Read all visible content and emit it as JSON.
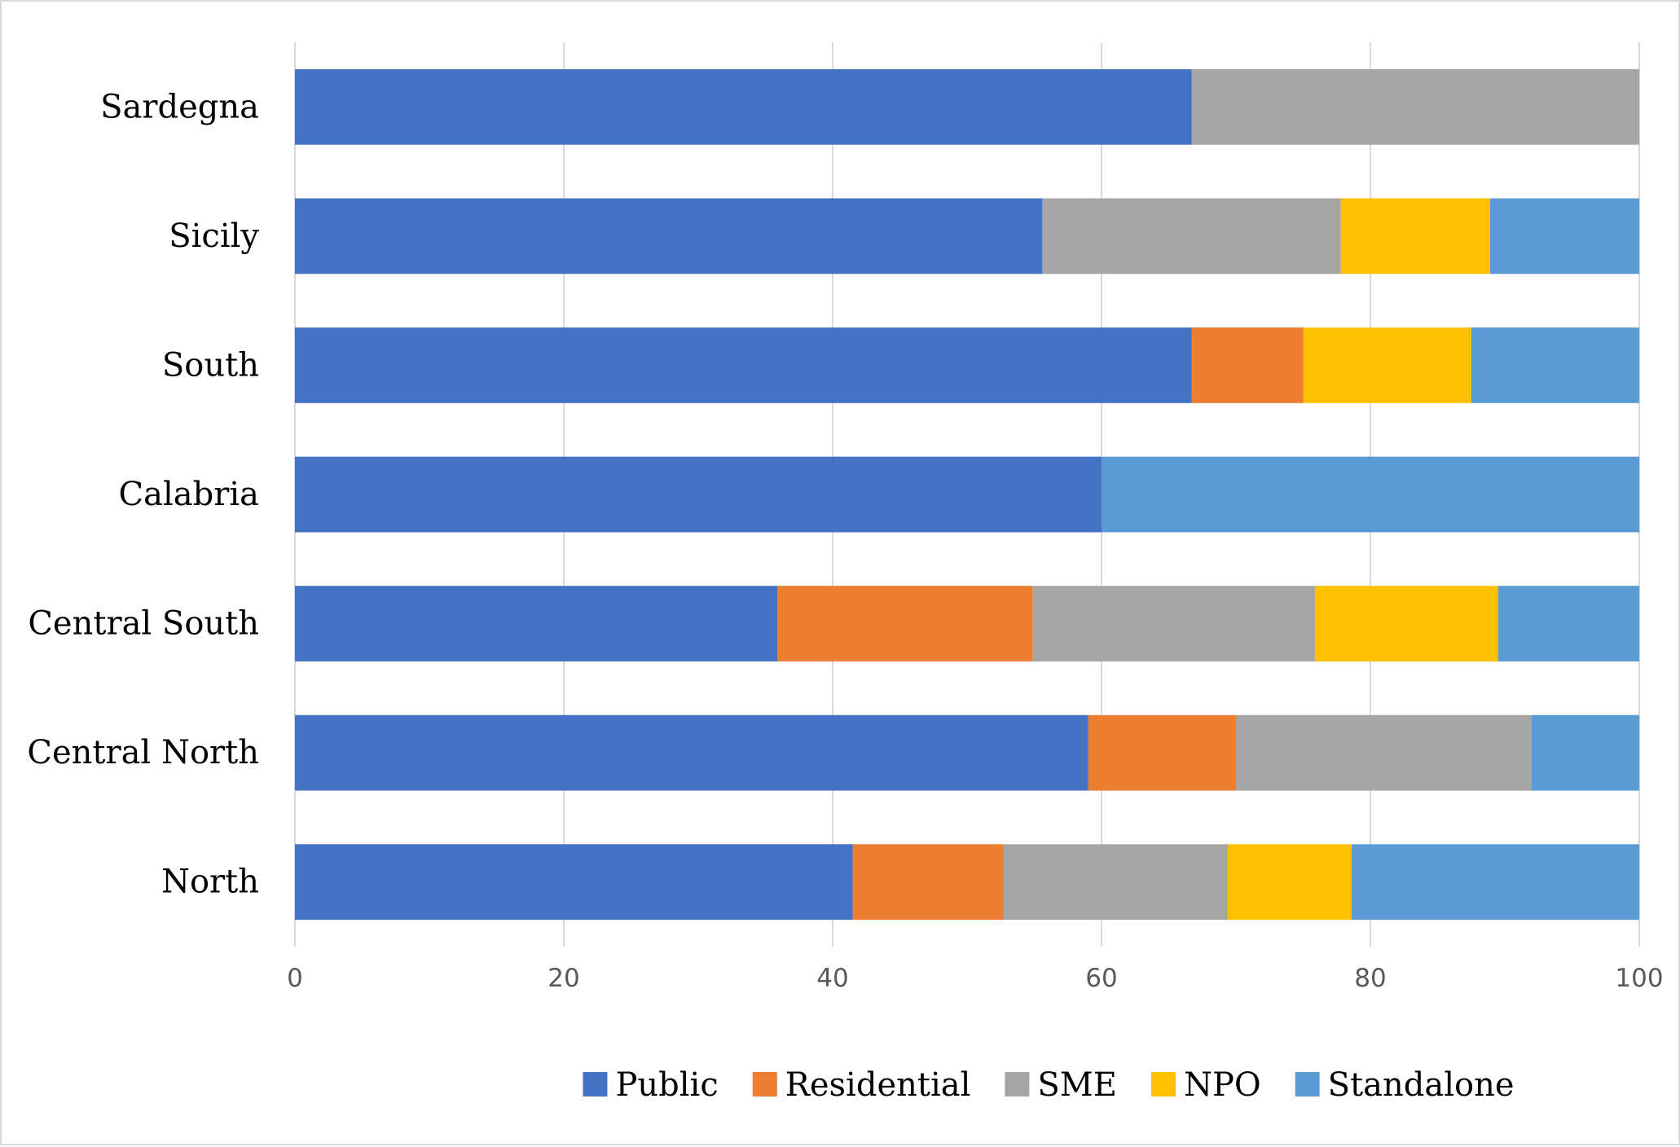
{
  "chart_data": {
    "type": "bar",
    "orientation": "horizontal",
    "stacked": true,
    "title": "",
    "xlabel": "",
    "ylabel": "",
    "xlim": [
      0,
      100
    ],
    "x_ticks": [
      0,
      20,
      40,
      60,
      80,
      100
    ],
    "grid": true,
    "legend_position": "bottom",
    "categories": [
      "Sardegna",
      "Sicily",
      "South",
      "Calabria",
      "Central South",
      "Central North",
      "North"
    ],
    "series": [
      {
        "name": "Public",
        "color": "#4472C4",
        "values": [
          66.7,
          55.6,
          66.7,
          60.0,
          35.9,
          59.0,
          41.5
        ]
      },
      {
        "name": "Residential",
        "color": "#ED7D31",
        "values": [
          0.0,
          0.0,
          8.3,
          0.0,
          19.0,
          11.0,
          11.2
        ]
      },
      {
        "name": "SME",
        "color": "#A5A5A5",
        "values": [
          33.3,
          22.2,
          0.0,
          0.0,
          21.0,
          22.0,
          16.7
        ]
      },
      {
        "name": "NPO",
        "color": "#FFC000",
        "values": [
          0.0,
          11.1,
          12.5,
          0.0,
          13.6,
          0.0,
          9.2
        ]
      },
      {
        "name": "Standalone",
        "color": "#5B9BD5",
        "values": [
          0.0,
          11.1,
          12.5,
          40.0,
          10.5,
          8.0,
          21.4
        ]
      }
    ]
  }
}
